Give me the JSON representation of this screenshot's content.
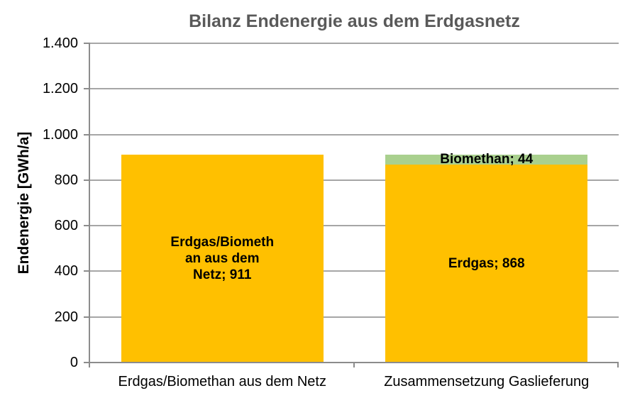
{
  "chart_data": {
    "type": "bar",
    "stacked": true,
    "title": "Bilanz Endenergie aus dem Erdgasnetz",
    "ylabel": "Endenergie [GWh/a]",
    "xlabel": "",
    "ylim": [
      0,
      1400
    ],
    "ytick_interval": 200,
    "ytick_labels": [
      "0",
      "200",
      "400",
      "600",
      "800",
      "1.000",
      "1.200",
      "1.400"
    ],
    "grid": "horizontal-major",
    "legend_position": "none",
    "categories": [
      "Erdgas/Biomethan aus dem Netz",
      "Zusammensetzung Gaslieferung"
    ],
    "bars": [
      {
        "category": "Erdgas/Biomethan aus dem Netz",
        "segments": [
          {
            "name": "Erdgas/Biomethan aus dem Netz",
            "value": 911,
            "color": "#FFC000",
            "data_label": "Erdgas/Biomethan aus dem Netz; 911",
            "label_lines": [
              "Erdgas/Biometh",
              "an aus dem",
              "Netz; 911"
            ]
          }
        ]
      },
      {
        "category": "Zusammensetzung Gaslieferung",
        "segments": [
          {
            "name": "Erdgas",
            "value": 868,
            "color": "#FFC000",
            "data_label": "Erdgas; 868",
            "label_lines": [
              "Erdgas; 868"
            ]
          },
          {
            "name": "Biomethan",
            "value": 44,
            "color": "#A9D08E",
            "data_label": "Biomethan; 44",
            "label_lines": [
              "Biomethan; 44"
            ]
          }
        ]
      }
    ],
    "colors": {
      "title_text": "#595959",
      "gridline": "#A6A6A6",
      "axis_line": "#8C8C8C",
      "label_text": "#000000",
      "erdgas": "#FFC000",
      "biomethan": "#A9D08E"
    }
  }
}
